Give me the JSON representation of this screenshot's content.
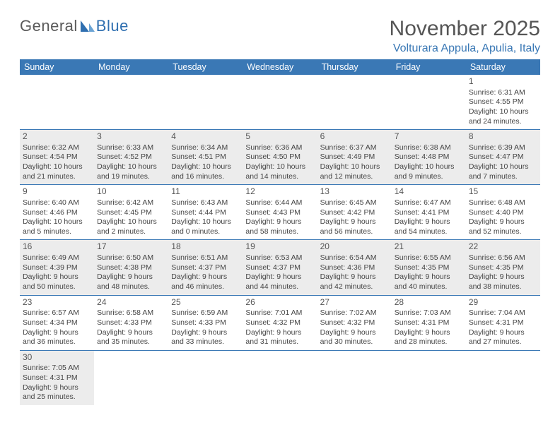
{
  "logo": {
    "text1": "General",
    "text2": "Blue"
  },
  "title": "November 2025",
  "location": "Volturara Appula, Apulia, Italy",
  "dayHeaders": [
    "Sunday",
    "Monday",
    "Tuesday",
    "Wednesday",
    "Thursday",
    "Friday",
    "Saturday"
  ],
  "colors": {
    "headerBg": "#3a78b5",
    "headerText": "#ffffff",
    "rowShaded": "#ececec",
    "border": "#3a78b5",
    "titleText": "#555555",
    "locationText": "#3a78b5"
  },
  "weeks": [
    {
      "shaded": false,
      "days": [
        null,
        null,
        null,
        null,
        null,
        null,
        {
          "n": "1",
          "sunrise": "Sunrise: 6:31 AM",
          "sunset": "Sunset: 4:55 PM",
          "daylight": "Daylight: 10 hours and 24 minutes."
        }
      ]
    },
    {
      "shaded": true,
      "days": [
        {
          "n": "2",
          "sunrise": "Sunrise: 6:32 AM",
          "sunset": "Sunset: 4:54 PM",
          "daylight": "Daylight: 10 hours and 21 minutes."
        },
        {
          "n": "3",
          "sunrise": "Sunrise: 6:33 AM",
          "sunset": "Sunset: 4:52 PM",
          "daylight": "Daylight: 10 hours and 19 minutes."
        },
        {
          "n": "4",
          "sunrise": "Sunrise: 6:34 AM",
          "sunset": "Sunset: 4:51 PM",
          "daylight": "Daylight: 10 hours and 16 minutes."
        },
        {
          "n": "5",
          "sunrise": "Sunrise: 6:36 AM",
          "sunset": "Sunset: 4:50 PM",
          "daylight": "Daylight: 10 hours and 14 minutes."
        },
        {
          "n": "6",
          "sunrise": "Sunrise: 6:37 AM",
          "sunset": "Sunset: 4:49 PM",
          "daylight": "Daylight: 10 hours and 12 minutes."
        },
        {
          "n": "7",
          "sunrise": "Sunrise: 6:38 AM",
          "sunset": "Sunset: 4:48 PM",
          "daylight": "Daylight: 10 hours and 9 minutes."
        },
        {
          "n": "8",
          "sunrise": "Sunrise: 6:39 AM",
          "sunset": "Sunset: 4:47 PM",
          "daylight": "Daylight: 10 hours and 7 minutes."
        }
      ]
    },
    {
      "shaded": false,
      "days": [
        {
          "n": "9",
          "sunrise": "Sunrise: 6:40 AM",
          "sunset": "Sunset: 4:46 PM",
          "daylight": "Daylight: 10 hours and 5 minutes."
        },
        {
          "n": "10",
          "sunrise": "Sunrise: 6:42 AM",
          "sunset": "Sunset: 4:45 PM",
          "daylight": "Daylight: 10 hours and 2 minutes."
        },
        {
          "n": "11",
          "sunrise": "Sunrise: 6:43 AM",
          "sunset": "Sunset: 4:44 PM",
          "daylight": "Daylight: 10 hours and 0 minutes."
        },
        {
          "n": "12",
          "sunrise": "Sunrise: 6:44 AM",
          "sunset": "Sunset: 4:43 PM",
          "daylight": "Daylight: 9 hours and 58 minutes."
        },
        {
          "n": "13",
          "sunrise": "Sunrise: 6:45 AM",
          "sunset": "Sunset: 4:42 PM",
          "daylight": "Daylight: 9 hours and 56 minutes."
        },
        {
          "n": "14",
          "sunrise": "Sunrise: 6:47 AM",
          "sunset": "Sunset: 4:41 PM",
          "daylight": "Daylight: 9 hours and 54 minutes."
        },
        {
          "n": "15",
          "sunrise": "Sunrise: 6:48 AM",
          "sunset": "Sunset: 4:40 PM",
          "daylight": "Daylight: 9 hours and 52 minutes."
        }
      ]
    },
    {
      "shaded": true,
      "days": [
        {
          "n": "16",
          "sunrise": "Sunrise: 6:49 AM",
          "sunset": "Sunset: 4:39 PM",
          "daylight": "Daylight: 9 hours and 50 minutes."
        },
        {
          "n": "17",
          "sunrise": "Sunrise: 6:50 AM",
          "sunset": "Sunset: 4:38 PM",
          "daylight": "Daylight: 9 hours and 48 minutes."
        },
        {
          "n": "18",
          "sunrise": "Sunrise: 6:51 AM",
          "sunset": "Sunset: 4:37 PM",
          "daylight": "Daylight: 9 hours and 46 minutes."
        },
        {
          "n": "19",
          "sunrise": "Sunrise: 6:53 AM",
          "sunset": "Sunset: 4:37 PM",
          "daylight": "Daylight: 9 hours and 44 minutes."
        },
        {
          "n": "20",
          "sunrise": "Sunrise: 6:54 AM",
          "sunset": "Sunset: 4:36 PM",
          "daylight": "Daylight: 9 hours and 42 minutes."
        },
        {
          "n": "21",
          "sunrise": "Sunrise: 6:55 AM",
          "sunset": "Sunset: 4:35 PM",
          "daylight": "Daylight: 9 hours and 40 minutes."
        },
        {
          "n": "22",
          "sunrise": "Sunrise: 6:56 AM",
          "sunset": "Sunset: 4:35 PM",
          "daylight": "Daylight: 9 hours and 38 minutes."
        }
      ]
    },
    {
      "shaded": false,
      "days": [
        {
          "n": "23",
          "sunrise": "Sunrise: 6:57 AM",
          "sunset": "Sunset: 4:34 PM",
          "daylight": "Daylight: 9 hours and 36 minutes."
        },
        {
          "n": "24",
          "sunrise": "Sunrise: 6:58 AM",
          "sunset": "Sunset: 4:33 PM",
          "daylight": "Daylight: 9 hours and 35 minutes."
        },
        {
          "n": "25",
          "sunrise": "Sunrise: 6:59 AM",
          "sunset": "Sunset: 4:33 PM",
          "daylight": "Daylight: 9 hours and 33 minutes."
        },
        {
          "n": "26",
          "sunrise": "Sunrise: 7:01 AM",
          "sunset": "Sunset: 4:32 PM",
          "daylight": "Daylight: 9 hours and 31 minutes."
        },
        {
          "n": "27",
          "sunrise": "Sunrise: 7:02 AM",
          "sunset": "Sunset: 4:32 PM",
          "daylight": "Daylight: 9 hours and 30 minutes."
        },
        {
          "n": "28",
          "sunrise": "Sunrise: 7:03 AM",
          "sunset": "Sunset: 4:31 PM",
          "daylight": "Daylight: 9 hours and 28 minutes."
        },
        {
          "n": "29",
          "sunrise": "Sunrise: 7:04 AM",
          "sunset": "Sunset: 4:31 PM",
          "daylight": "Daylight: 9 hours and 27 minutes."
        }
      ]
    },
    {
      "shaded": true,
      "days": [
        {
          "n": "30",
          "sunrise": "Sunrise: 7:05 AM",
          "sunset": "Sunset: 4:31 PM",
          "daylight": "Daylight: 9 hours and 25 minutes."
        },
        null,
        null,
        null,
        null,
        null,
        null
      ]
    }
  ]
}
